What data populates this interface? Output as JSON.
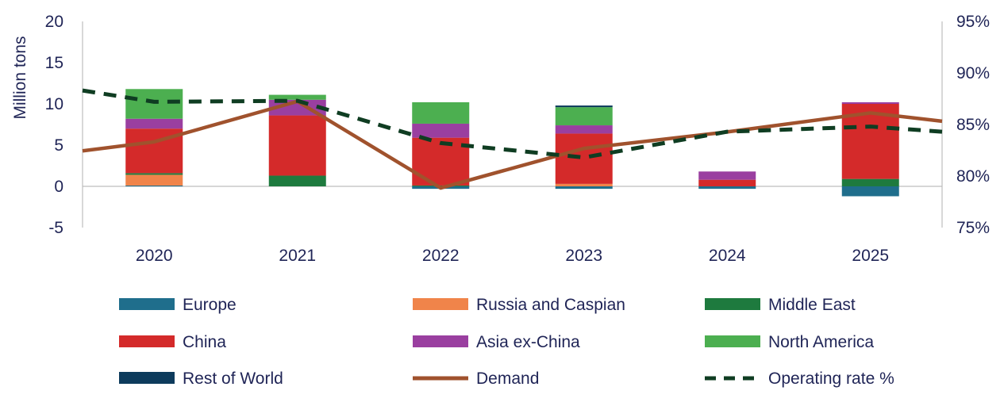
{
  "chart_data": {
    "type": "bar",
    "stacked": true,
    "categories": [
      "2020",
      "2021",
      "2022",
      "2023",
      "2024",
      "2025"
    ],
    "ylabel": "Million tons",
    "ylim": [
      -5,
      20
    ],
    "yticks": [
      "-5",
      "0",
      "5",
      "10",
      "15",
      "20"
    ],
    "y2lim": [
      75,
      95
    ],
    "y2ticks": [
      "75%",
      "80%",
      "85%",
      "90%",
      "95%"
    ],
    "series": [
      {
        "name": "Europe",
        "color": "#1f6e8c",
        "values": [
          0.1,
          0.0,
          -0.3,
          -0.3,
          -0.3,
          -1.2
        ]
      },
      {
        "name": "Russia and Caspian",
        "color": "#f0844a",
        "values": [
          1.3,
          0.0,
          0.0,
          0.3,
          0.0,
          0.0
        ]
      },
      {
        "name": "Middle East",
        "color": "#1e7a3e",
        "values": [
          0.2,
          1.3,
          0.1,
          0.0,
          0.0,
          0.9
        ]
      },
      {
        "name": "China",
        "color": "#d42a2a",
        "values": [
          5.4,
          7.3,
          5.8,
          6.1,
          0.8,
          9.1
        ]
      },
      {
        "name": "Asia ex-China",
        "color": "#9a3fa0",
        "values": [
          1.2,
          1.9,
          1.7,
          1.0,
          1.0,
          0.2
        ]
      },
      {
        "name": "North America",
        "color": "#4caf50",
        "values": [
          3.6,
          0.6,
          2.6,
          2.2,
          0.0,
          0.0
        ]
      },
      {
        "name": "Rest of World",
        "color": "#0d3b5c",
        "values": [
          0.0,
          0.0,
          0.0,
          0.2,
          0.0,
          0.0
        ]
      }
    ],
    "lines": [
      {
        "name": "Demand",
        "color": "#a0522d",
        "style": "solid",
        "axis": "left",
        "x": [
          -0.5,
          0,
          1,
          2,
          3,
          4,
          5,
          5.5
        ],
        "values": [
          4.3,
          5.4,
          10.3,
          -0.2,
          4.6,
          6.6,
          8.9,
          7.9
        ]
      },
      {
        "name": "Operating rate %",
        "color": "#0f3d22",
        "style": "dashed",
        "axis": "right",
        "x": [
          -0.5,
          0,
          1,
          2,
          3,
          4,
          5,
          5.5
        ],
        "values": [
          88.3,
          87.2,
          87.3,
          83.2,
          81.8,
          84.3,
          84.8,
          84.3
        ]
      }
    ],
    "legend": {
      "position": "bottom",
      "order": [
        "Europe",
        "Russia and Caspian",
        "Middle East",
        "China",
        "Asia ex-China",
        "North America",
        "Rest of World",
        "Demand",
        "Operating rate %"
      ]
    }
  }
}
